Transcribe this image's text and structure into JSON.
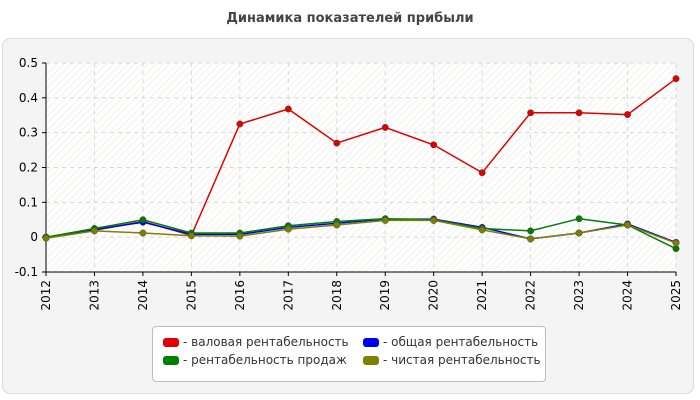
{
  "chart_data": {
    "type": "line",
    "title": "Динамика показателей прибыли",
    "xlabel": "",
    "ylabel": "",
    "categories": [
      "2012",
      "2013",
      "2014",
      "2015",
      "2016",
      "2017",
      "2018",
      "2019",
      "2020",
      "2021",
      "2022",
      "2023",
      "2024",
      "2025"
    ],
    "ylim": [
      -0.1,
      0.5
    ],
    "yticks": [
      "0.5",
      "0.4",
      "0.3",
      "0.2",
      "0.1",
      "0",
      "-0.1"
    ],
    "ytick_values": [
      0.5,
      0.4,
      0.3,
      0.2,
      0.1,
      0,
      -0.1
    ],
    "grid": true,
    "legend_position": "bottom",
    "series": [
      {
        "name": "- валовая рентабельность",
        "color": "#e00000",
        "values": [
          0.0,
          0.02,
          0.045,
          0.005,
          0.325,
          0.368,
          0.27,
          0.315,
          0.265,
          0.185,
          0.357,
          0.357,
          0.352,
          0.455
        ]
      },
      {
        "name": "- общая рентабельность",
        "color": "#0000ee",
        "values": [
          0.0,
          0.022,
          0.043,
          0.008,
          0.008,
          0.028,
          0.04,
          0.052,
          0.052,
          0.028,
          -0.005,
          0.012,
          0.038,
          -0.015
        ]
      },
      {
        "name": "- рентабельность продаж",
        "color": "#008000",
        "values": [
          0.0,
          0.025,
          0.05,
          0.012,
          0.012,
          0.033,
          0.045,
          0.053,
          0.05,
          0.025,
          0.018,
          0.053,
          0.035,
          -0.033
        ]
      },
      {
        "name": "- чистая рентабельность",
        "color": "#808000",
        "values": [
          -0.003,
          0.018,
          0.012,
          0.004,
          0.003,
          0.023,
          0.035,
          0.048,
          0.048,
          0.021,
          -0.005,
          0.012,
          0.035,
          -0.017
        ]
      }
    ]
  }
}
